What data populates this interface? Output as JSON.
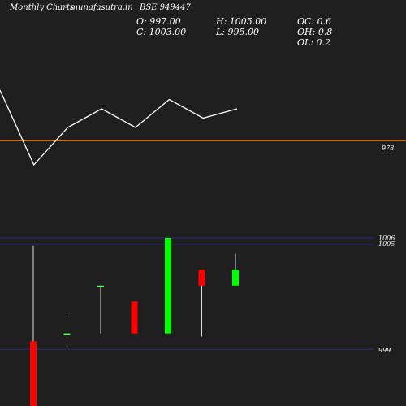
{
  "header": {
    "left_title": "Monthly Charts",
    "site": "- munafasutra.in",
    "symbol": "BSE 949447"
  },
  "ohlc_readout": {
    "open": "O: 997.00",
    "high": "H: 1005.00",
    "oc": "OC: 0.6",
    "close": "C: 1003.00",
    "low": "L: 995.00",
    "oh": "OH: 0.8",
    "ol": "OL: 0.2"
  },
  "colors": {
    "background": "#1f1f1f",
    "line": "#ffffff",
    "reference_line": "#ff8c1a",
    "band_line": "#2a2a7a",
    "bull": "#00ff00",
    "bull_small": "#55ff55",
    "bear": "#ff0000"
  },
  "chart_data": [
    {
      "type": "line",
      "series": [
        {
          "values": [
            997,
            989,
            993,
            995,
            993,
            996,
            994,
            995
          ]
        }
      ],
      "reference_line": {
        "value": 978,
        "label": "978"
      }
    },
    {
      "type": "candlestick",
      "candles": [
        {
          "open": 999.5,
          "high": 1005.5,
          "low": 995.0,
          "close": 995.0,
          "color": "bear"
        },
        {
          "open": 1000.0,
          "high": 1001.0,
          "low": 999.0,
          "close": 1000.0,
          "color": "bull_small"
        },
        {
          "open": 1003.0,
          "high": 1003.0,
          "low": 1000.0,
          "close": 1003.0,
          "color": "bull_small"
        },
        {
          "open": 1002.0,
          "high": 1002.0,
          "low": 1000.0,
          "close": 1000.0,
          "color": "bear"
        },
        {
          "open": 1000.0,
          "high": 1006.0,
          "low": 1000.0,
          "close": 1006.0,
          "color": "bull"
        },
        {
          "open": 1004.0,
          "high": 1004.0,
          "low": 999.8,
          "close": 1003.0,
          "color": "bear"
        },
        {
          "open": 1003.0,
          "high": 1005.0,
          "low": 1003.0,
          "close": 1004.0,
          "color": "bull"
        }
      ],
      "price_labels": [
        "1006",
        "1005",
        "999"
      ]
    }
  ]
}
